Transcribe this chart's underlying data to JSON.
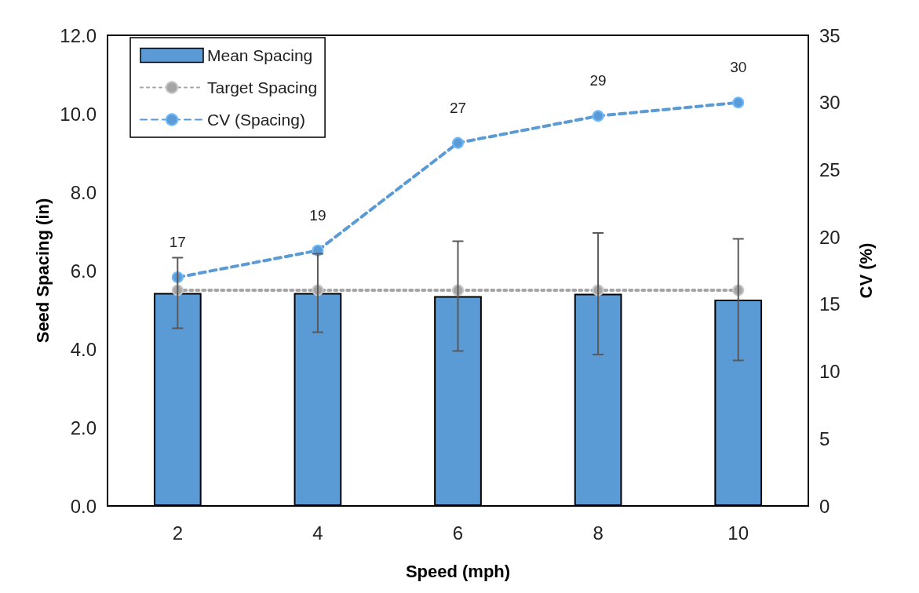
{
  "chart_data": {
    "type": "bar",
    "xlabel": "Speed (mph)",
    "ylabel": "Seed Spacing (in)",
    "y2label": "CV (%)",
    "categories": [
      "2",
      "4",
      "6",
      "8",
      "10"
    ],
    "series": [
      {
        "name": "Mean Spacing",
        "color": "#5b9bd5",
        "values": [
          5.43,
          5.43,
          5.35,
          5.41,
          5.26
        ],
        "errors": [
          0.9,
          1.0,
          1.4,
          1.55,
          1.55
        ]
      },
      {
        "name": "Target Spacing",
        "type": "line",
        "color": "#a5a5a5",
        "values": [
          5.5,
          5.5,
          5.5,
          5.5,
          5.5
        ],
        "line_style": "dotted",
        "marker": "circle"
      },
      {
        "name": "CV (Spacing)",
        "type": "line",
        "color": "#5b9bd5",
        "axis": "y2",
        "values": [
          17,
          19,
          27,
          29,
          30
        ],
        "value_labels": [
          "17",
          "19",
          "27",
          "29",
          "30"
        ],
        "line_style": "dashed",
        "marker": "circle"
      }
    ],
    "ylim": [
      0,
      12
    ],
    "yticks": [
      {
        "value": 0,
        "label": "0.0"
      },
      {
        "value": 2,
        "label": "2.0"
      },
      {
        "value": 4,
        "label": "4.0"
      },
      {
        "value": 6,
        "label": "6.0"
      },
      {
        "value": 8,
        "label": "8.0"
      },
      {
        "value": 10,
        "label": "10.0"
      },
      {
        "value": 12,
        "label": "12.0"
      }
    ],
    "y2lim": [
      0,
      35
    ],
    "y2ticks": [
      0,
      5,
      10,
      15,
      20,
      25,
      30,
      35
    ],
    "grid": false,
    "legend": "top left"
  }
}
